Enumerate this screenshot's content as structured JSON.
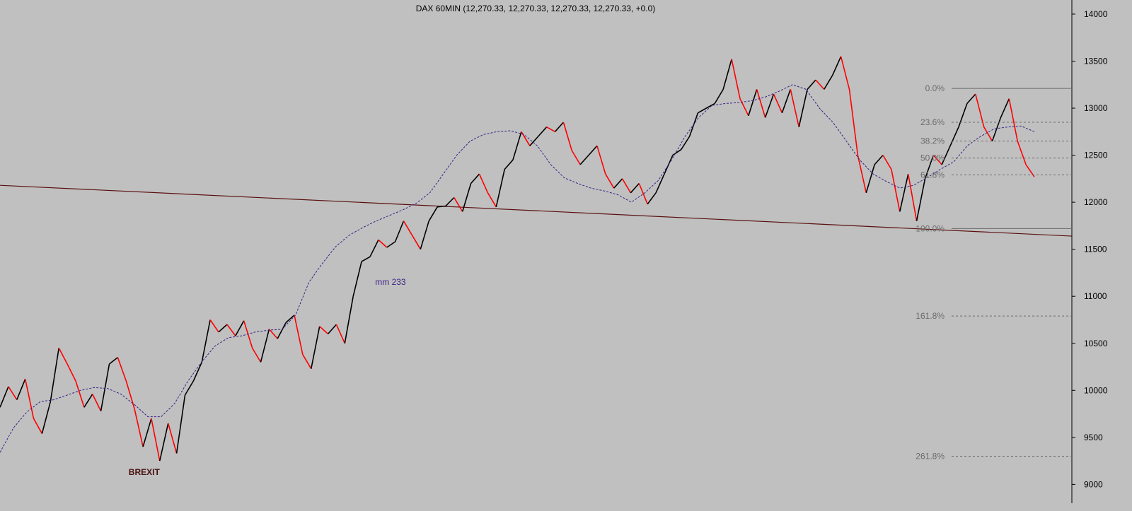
{
  "chart_data": {
    "type": "line",
    "title": "DAX 60MIN (12,270.33, 12,270.33, 12,270.33, 12,270.33, +0.0)",
    "xlabel": "",
    "ylabel": "",
    "ylim": [
      8800,
      14150
    ],
    "y_ticks": [
      9000,
      9500,
      10000,
      10500,
      11000,
      11500,
      12000,
      12500,
      13000,
      13500,
      14000
    ],
    "y_tick_labels": [
      "9000",
      "9500",
      "10000",
      "10500",
      "11000",
      "11500",
      "12000",
      "12500",
      "13000",
      "13500",
      "14000"
    ],
    "grid": false,
    "colors": {
      "background": "#c0c0c0",
      "price_up": "#000000",
      "price_down": "#ff0000",
      "moving_average": "#3b1f86",
      "trendline": "#5a1010",
      "fib_line": "#6b6b6b",
      "fib_label": "#6b6b6b"
    },
    "series": [
      {
        "style": "price",
        "values": [
          9820,
          10040,
          9900,
          10120,
          9700,
          9540,
          9880,
          10450,
          10280,
          10100,
          9820,
          9960,
          9780,
          10280,
          10350,
          10100,
          9800,
          9400,
          9700,
          9250,
          9650,
          9330,
          9950,
          10100,
          10300,
          10750,
          10620,
          10700,
          10580,
          10740,
          10450,
          10300,
          10650,
          10550,
          10720,
          10800,
          10380,
          10230,
          10680,
          10600,
          10700,
          10500,
          11000,
          11370,
          11420,
          11600,
          11520,
          11580,
          11800,
          11650,
          11500,
          11800,
          11950,
          11960,
          12050,
          11900,
          12200,
          12300,
          12100,
          11950,
          12350,
          12450,
          12750,
          12600,
          12700,
          12800,
          12750,
          12850,
          12550,
          12400,
          12500,
          12600,
          12300,
          12150,
          12250,
          12100,
          12200,
          11980,
          12100,
          12300,
          12500,
          12560,
          12700,
          12950,
          13000,
          13050,
          13200,
          13520,
          13100,
          12920,
          13200,
          12900,
          13150,
          12950,
          13200,
          12800,
          13200,
          13300,
          13200,
          13350,
          13550,
          13200,
          12500,
          12100,
          12400,
          12500,
          12350,
          11900,
          12300,
          11800,
          12250,
          12500,
          12400,
          12600,
          12800,
          13050,
          13150,
          12800,
          12650,
          12900,
          13100,
          12650,
          12400,
          12270
        ]
      },
      {
        "name": "mm 233",
        "style": "ma",
        "values": [
          9340,
          9600,
          9770,
          9880,
          9900,
          9950,
          10000,
          10030,
          10020,
          9960,
          9850,
          9720,
          9720,
          9860,
          10100,
          10300,
          10470,
          10560,
          10580,
          10620,
          10640,
          10650,
          10800,
          11150,
          11350,
          11530,
          11650,
          11730,
          11800,
          11860,
          11920,
          11990,
          12100,
          12300,
          12500,
          12650,
          12720,
          12750,
          12760,
          12720,
          12600,
          12400,
          12260,
          12200,
          12150,
          12120,
          12080,
          12000,
          12100,
          12230,
          12450,
          12700,
          12900,
          13030,
          13050,
          13060,
          13080,
          13120,
          13180,
          13250,
          13200,
          13000,
          12850,
          12650,
          12450,
          12300,
          12220,
          12150,
          12180,
          12260,
          12350,
          12430,
          12600,
          12700,
          12780,
          12800,
          12810,
          12750
        ]
      }
    ],
    "trendline": {
      "from": {
        "x": 0,
        "y": 12180
      },
      "to": {
        "x": 1,
        "y": 11640
      }
    },
    "fibonacci": {
      "levels": [
        {
          "label": "0.0%",
          "value": 13210
        },
        {
          "label": "23.6%",
          "value": 12850
        },
        {
          "label": "38.2%",
          "value": 12650
        },
        {
          "label": "50.0%",
          "value": 12470
        },
        {
          "label": "61.8%",
          "value": 12290
        },
        {
          "label": "100.0%",
          "value": 11720
        },
        {
          "label": "161.8%",
          "value": 10790
        },
        {
          "label": "261.8%",
          "value": 9300
        }
      ]
    },
    "annotations": [
      {
        "text": "mm 233",
        "kind": "ma",
        "x": 0.35,
        "y": 11120
      },
      {
        "text": "BREXIT",
        "kind": "brexit",
        "x": 0.12,
        "y": 9100
      }
    ]
  }
}
